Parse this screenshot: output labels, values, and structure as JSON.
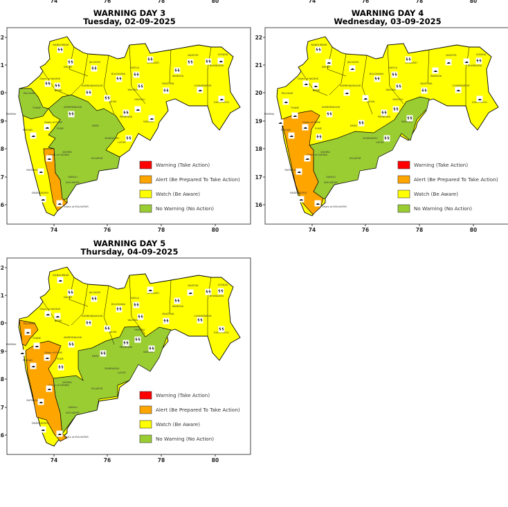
{
  "colors": {
    "warning": "#ff0000",
    "alert": "#ffa500",
    "watch": "#ffff00",
    "no_warning": "#9acd32"
  },
  "top_strip_ticks": [
    "74",
    "76",
    "78",
    "80"
  ],
  "x_ticks": [
    "74",
    "76",
    "78",
    "80"
  ],
  "y_ticks": [
    "22",
    "21",
    "20",
    "19",
    "18",
    "17",
    "16"
  ],
  "legend": [
    {
      "label": "Warning (Take Action)",
      "level": "warning"
    },
    {
      "label": "Alert (Be Prepared To Take Action)",
      "level": "alert"
    },
    {
      "label": "Watch (Be Aware)",
      "level": "watch"
    },
    {
      "label": "No Warning (No Action)",
      "level": "no_warning"
    }
  ],
  "districts": [
    "NANDURBAR",
    "DHULE",
    "JALGAON",
    "AMRAVATI",
    "NAGPUR",
    "GONDIA",
    "BHANDARA",
    "AKOLA",
    "BULDHANA",
    "WARDHA",
    "Ghats of NASHIK",
    "NASIK",
    "SAMBHAJINAGAR",
    "WASHIM",
    "YAVATMAL",
    "CHANDRAPUR",
    "PALGHAR",
    "JALNA",
    "HINGOLI",
    "GADCHIROLI",
    "THANE",
    "MUMBAI",
    "AHMEDNAGAR",
    "PARBHANI",
    "NANDED",
    "Ghats of PUNE",
    "PUNE",
    "BEED",
    "RAIGAD",
    "DHARASHIV",
    "LATUR",
    "SATARA",
    "Ghats of SATARA",
    "SOLAPUR",
    "RATNAGIRI",
    "SANGLI",
    "KOLHAPUR",
    "SINDHUDURG",
    "Ghats of KOLHAPUR"
  ],
  "icon_types": {
    "thunderstorm": "thunderstorm-icon",
    "rain": "heavy-rain-icon"
  },
  "days": [
    {
      "title": "WARNING DAY 3",
      "date": "Tuesday, 02-09-2025",
      "no_warning_regions": [
        "PALGHAR",
        "THANE",
        "AHMEDNAGAR",
        "PUNE",
        "BEED",
        "DHARASHIV",
        "SATARA",
        "SOLAPUR",
        "SANGLI",
        "KOLHAPUR"
      ],
      "alert_regions": [
        "Ghats of SATARA",
        "Ghats of KOLHAPUR"
      ],
      "icons": {
        "NANDURBAR": "thunderstorm",
        "DHULE": "thunderstorm",
        "JALGAON": "thunderstorm",
        "AMRAVATI": "thunderstorm",
        "NAGPUR": "thunderstorm",
        "BHANDARA": "thunderstorm",
        "GONDIA": "rain",
        "AKOLA": "thunderstorm",
        "WARDHA": "thunderstorm",
        "BULDHANA": "thunderstorm",
        "Ghats of NASHIK": "thunderstorm",
        "NASIK": "thunderstorm",
        "SAMBHAJINAGAR": "thunderstorm",
        "WASHIM": "thunderstorm",
        "YAVATMAL": "thunderstorm",
        "CHANDRAPUR": "rain",
        "JALNA": "thunderstorm",
        "GADCHIROLI": "rain",
        "HINGOLI": "rain",
        "AHMEDNAGAR": "thunderstorm",
        "PARBHANI": "thunderstorm",
        "NANDED": "rain",
        "Ghats of PUNE": "rain",
        "RAIGAD": "rain",
        "LATUR": "thunderstorm",
        "Ghats of SATARA": "rain",
        "RATNAGIRI": "rain",
        "SINDHUDURG": "rain",
        "Ghats of KOLHAPUR": "rain"
      }
    },
    {
      "title": "WARNING DAY 4",
      "date": "Wednesday, 03-09-2025",
      "no_warning_regions": [
        "NANDED",
        "LATUR",
        "DHARASHIV",
        "SOLAPUR",
        "SATARA",
        "SANGLI",
        "KOLHAPUR"
      ],
      "alert_regions": [
        "MUMBAI",
        "RAIGAD",
        "Ghats of PUNE",
        "RATNAGIRI",
        "Ghats of SATARA",
        "SINDHUDURG",
        "Ghats of KOLHAPUR"
      ],
      "icons": {
        "NANDURBAR": "thunderstorm",
        "DHULE": "rain",
        "JALGAON": "rain",
        "AMRAVATI": "thunderstorm",
        "NAGPUR": "rain",
        "BHANDARA": "rain",
        "GONDIA": "thunderstorm",
        "WARDHA": "rain",
        "BULDHANA": "thunderstorm",
        "AKOLA": "thunderstorm",
        "Ghats of NASHIK": "rain",
        "NASIK": "rain",
        "SAMBHAJINAGAR": "rain",
        "WASHIM": "thunderstorm",
        "YAVATMAL": "thunderstorm",
        "CHANDRAPUR": "rain",
        "PALGHAR": "rain",
        "JALNA": "rain",
        "GADCHIROLI": "rain",
        "HINGOLI": "thunderstorm",
        "THANE": "rain",
        "MUMBAI": "rain",
        "AHMEDNAGAR": "thunderstorm",
        "PARBHANI": "thunderstorm",
        "NANDED": "thunderstorm",
        "BEED": "thunderstorm",
        "Ghats of PUNE": "rain",
        "RAIGAD": "rain",
        "PUNE": "thunderstorm",
        "LATUR": "thunderstorm",
        "Ghats of SATARA": "rain",
        "RATNAGIRI": "rain",
        "SINDHUDURG": "rain",
        "Ghats of KOLHAPUR": "rain"
      }
    },
    {
      "title": "WARNING DAY 5",
      "date": "Thursday, 04-09-2025",
      "no_warning_regions": [
        "HINGOLI",
        "PARBHANI",
        "NANDED",
        "BEED",
        "LATUR",
        "DHARASHIV",
        "SOLAPUR",
        "SATARA",
        "SANGLI",
        "KOLHAPUR"
      ],
      "alert_regions": [
        "PALGHAR",
        "MUMBAI",
        "RAIGAD",
        "Ghats of PUNE",
        "Ghats of SATARA",
        "RATNAGIRI",
        "Ghats of KOLHAPUR"
      ],
      "icons": {
        "NANDURBAR": "rain",
        "DHULE": "thunderstorm",
        "JALGAON": "thunderstorm",
        "AMRAVATI": "rain",
        "NAGPUR": "rain",
        "BHANDARA": "thunderstorm",
        "GONDIA": "thunderstorm",
        "AKOLA": "thunderstorm",
        "WARDHA": "thunderstorm",
        "BULDHANA": "thunderstorm",
        "Ghats of NASHIK": "rain",
        "NASIK": "rain",
        "SAMBHAJINAGAR": "thunderstorm",
        "WASHIM": "thunderstorm",
        "YAVATMAL": "thunderstorm",
        "CHANDRAPUR": "thunderstorm",
        "PALGHAR": "rain",
        "JALNA": "thunderstorm",
        "GADCHIROLI": "thunderstorm",
        "HINGOLI": "thunderstorm",
        "THANE": "rain",
        "MUMBAI": "rain",
        "AHMEDNAGAR": "thunderstorm",
        "PARBHANI": "thunderstorm",
        "NANDED": "thunderstorm",
        "BEED": "thunderstorm",
        "Ghats of PUNE": "rain",
        "RAIGAD": "rain",
        "PUNE": "thunderstorm",
        "Ghats of SATARA": "rain",
        "RATNAGIRI": "rain",
        "SINDHUDURG": "rain",
        "Ghats of KOLHAPUR": "rain"
      }
    }
  ]
}
